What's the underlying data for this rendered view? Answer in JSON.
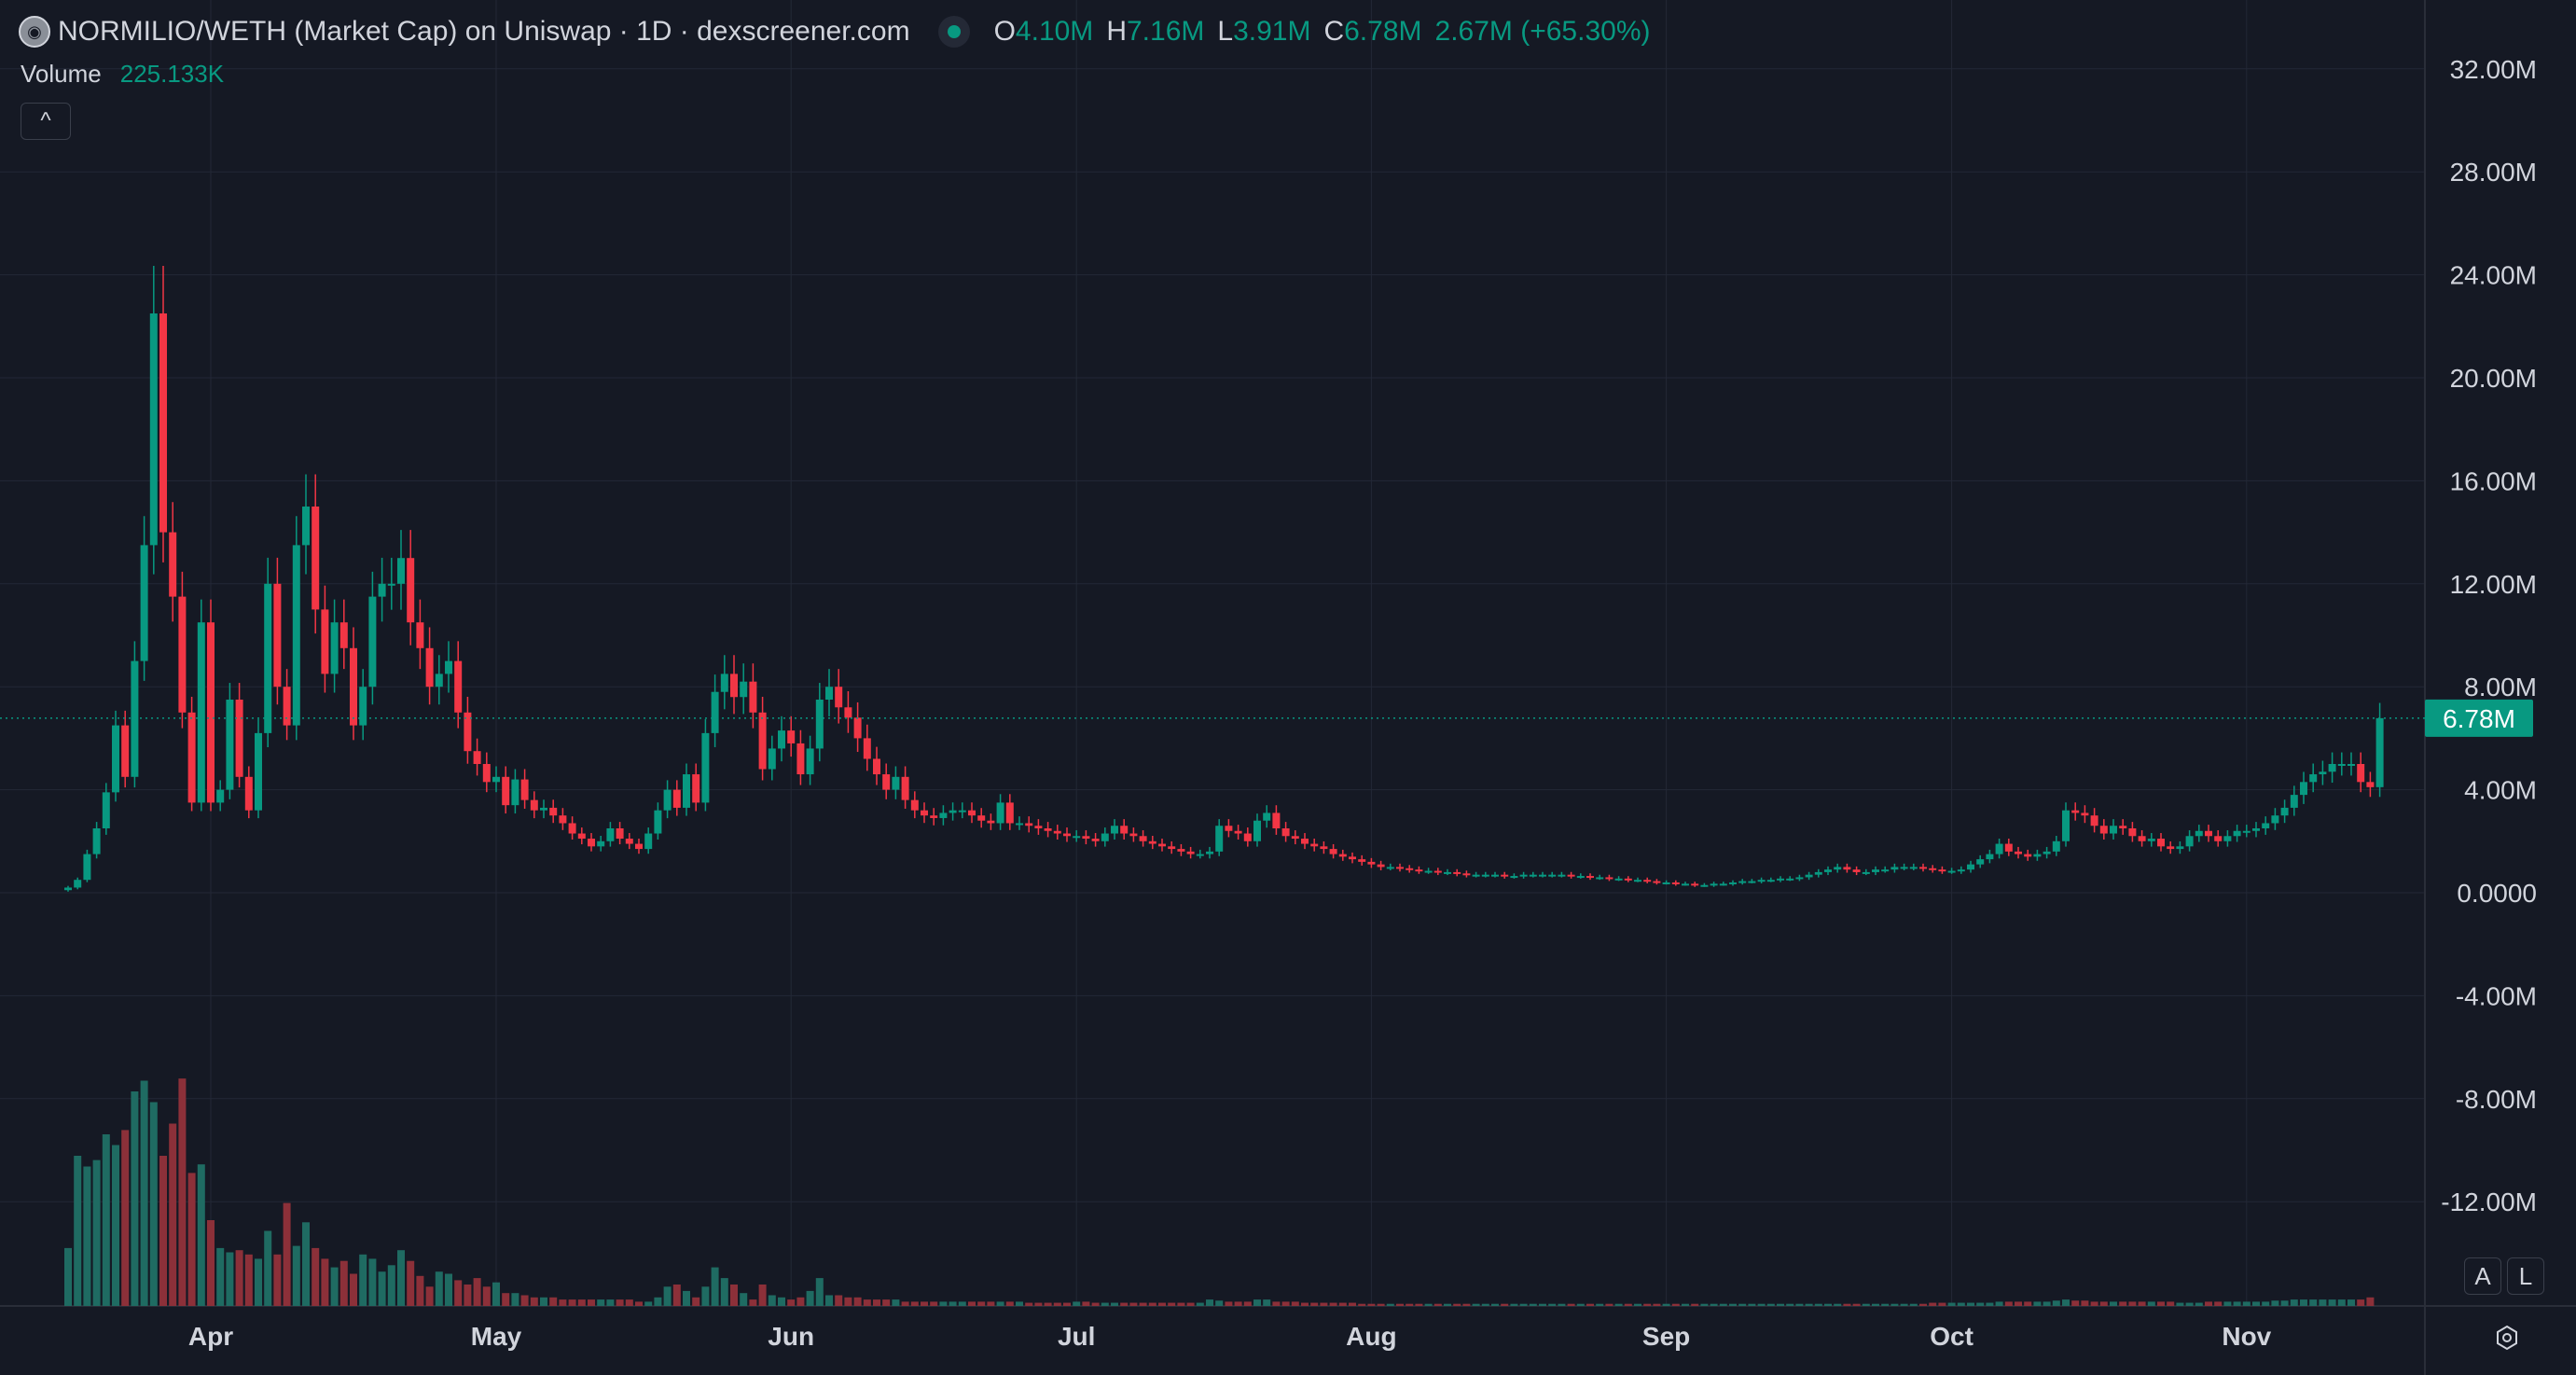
{
  "header": {
    "title": "NORMILIO/WETH (Market Cap) on Uniswap · 1D · dexscreener.com",
    "ohlc": [
      {
        "key": "O",
        "value": "4.10M"
      },
      {
        "key": "H",
        "value": "7.16M"
      },
      {
        "key": "L",
        "value": "3.91M"
      },
      {
        "key": "C",
        "value": "6.78M"
      }
    ],
    "change": "2.67M (+65.30%)"
  },
  "volume": {
    "label": "Volume",
    "value": "225.133K"
  },
  "controls": {
    "collapse_glyph": "^",
    "auto_scale": "A",
    "log_scale": "L",
    "settings_icon": "gear-icon"
  },
  "current_price": {
    "label": "6.78M",
    "value": 6.78
  },
  "colors": {
    "up": "#089981",
    "down": "#f23645",
    "up_volume": "#1f6b62",
    "down_volume": "#8c3039",
    "background": "#151924",
    "grid": "#232836"
  },
  "chart_data": {
    "type": "candlestick",
    "y_unit": "market cap (millions)",
    "ylim": [
      -14,
      34
    ],
    "y_ticks": [
      {
        "value": 32,
        "label": "32.00M"
      },
      {
        "value": 28,
        "label": "28.00M"
      },
      {
        "value": 24,
        "label": "24.00M"
      },
      {
        "value": 20,
        "label": "20.00M"
      },
      {
        "value": 16,
        "label": "16.00M"
      },
      {
        "value": 12,
        "label": "12.00M"
      },
      {
        "value": 8,
        "label": "8.00M"
      },
      {
        "value": 4,
        "label": "4.00M"
      },
      {
        "value": 0,
        "label": "0.0000"
      },
      {
        "value": -4,
        "label": "-4.00M"
      },
      {
        "value": -8,
        "label": "-8.00M"
      },
      {
        "value": -12,
        "label": "-12.00M"
      }
    ],
    "x_ticks": [
      {
        "label": "Apr",
        "day": 15
      },
      {
        "label": "May",
        "day": 45
      },
      {
        "label": "Jun",
        "day": 76
      },
      {
        "label": "Jul",
        "day": 106
      },
      {
        "label": "Aug",
        "day": 137
      },
      {
        "label": "Sep",
        "day": 168
      },
      {
        "label": "Oct",
        "day": 198
      },
      {
        "label": "Nov",
        "day": 229
      }
    ],
    "grid": true,
    "closes": [
      0.2,
      0.5,
      1.5,
      2.5,
      3.9,
      6.5,
      4.5,
      9.0,
      13.5,
      22.5,
      14.0,
      11.5,
      7.0,
      3.5,
      10.5,
      3.5,
      4.0,
      7.5,
      4.5,
      3.2,
      6.2,
      12.0,
      8.0,
      6.5,
      13.5,
      15.0,
      11.0,
      8.5,
      10.5,
      9.5,
      6.5,
      8.0,
      11.5,
      12.0,
      12.0,
      13.0,
      10.5,
      9.5,
      8.0,
      8.5,
      9.0,
      7.0,
      5.5,
      5.0,
      4.3,
      4.5,
      3.4,
      4.4,
      3.6,
      3.2,
      3.3,
      3.0,
      2.7,
      2.3,
      2.1,
      1.8,
      2.0,
      2.5,
      2.1,
      1.9,
      1.7,
      2.3,
      3.2,
      4.0,
      3.3,
      4.6,
      3.5,
      6.2,
      7.8,
      8.5,
      7.6,
      8.2,
      7.0,
      4.8,
      5.6,
      6.3,
      5.8,
      4.6,
      5.6,
      7.5,
      8.0,
      7.2,
      6.8,
      6.0,
      5.2,
      4.6,
      4.0,
      4.5,
      3.6,
      3.2,
      3.0,
      2.9,
      3.1,
      3.2,
      3.2,
      3.0,
      2.8,
      2.7,
      3.5,
      2.7,
      2.7,
      2.6,
      2.5,
      2.4,
      2.3,
      2.2,
      2.2,
      2.1,
      2.0,
      2.3,
      2.6,
      2.3,
      2.2,
      2.0,
      1.9,
      1.8,
      1.7,
      1.6,
      1.5,
      1.5,
      1.6,
      2.6,
      2.4,
      2.3,
      2.0,
      2.8,
      3.1,
      2.5,
      2.2,
      2.1,
      1.9,
      1.8,
      1.7,
      1.5,
      1.4,
      1.3,
      1.2,
      1.1,
      1.0,
      1.0,
      0.95,
      0.9,
      0.85,
      0.85,
      0.8,
      0.8,
      0.75,
      0.7,
      0.7,
      0.7,
      0.7,
      0.65,
      0.65,
      0.7,
      0.7,
      0.7,
      0.7,
      0.7,
      0.65,
      0.65,
      0.6,
      0.6,
      0.55,
      0.55,
      0.5,
      0.5,
      0.45,
      0.4,
      0.4,
      0.35,
      0.35,
      0.3,
      0.3,
      0.35,
      0.35,
      0.4,
      0.45,
      0.45,
      0.5,
      0.5,
      0.55,
      0.55,
      0.6,
      0.7,
      0.8,
      0.9,
      1.0,
      0.9,
      0.8,
      0.8,
      0.9,
      0.9,
      1.0,
      1.0,
      1.0,
      0.95,
      0.9,
      0.85,
      0.85,
      0.9,
      1.1,
      1.3,
      1.5,
      1.9,
      1.6,
      1.5,
      1.4,
      1.5,
      1.6,
      2.0,
      3.2,
      3.1,
      3.0,
      2.6,
      2.3,
      2.6,
      2.5,
      2.2,
      2.0,
      2.1,
      1.8,
      1.7,
      1.8,
      2.2,
      2.4,
      2.2,
      2.0,
      2.2,
      2.4,
      2.4,
      2.5,
      2.7,
      3.0,
      3.3,
      3.8,
      4.3,
      4.6,
      4.7,
      5.0,
      5.0,
      5.0,
      4.3,
      4.1,
      6.78
    ],
    "volumes": [
      2.7,
      7.0,
      6.5,
      6.8,
      8.0,
      7.5,
      8.2,
      10.0,
      10.5,
      9.5,
      7.0,
      8.5,
      10.6,
      6.2,
      6.6,
      4.0,
      2.7,
      2.5,
      2.6,
      2.4,
      2.2,
      3.5,
      2.4,
      4.8,
      2.8,
      3.9,
      2.7,
      2.2,
      1.8,
      2.1,
      1.5,
      2.4,
      2.2,
      1.6,
      1.9,
      2.6,
      2.1,
      1.4,
      0.9,
      1.6,
      1.5,
      1.2,
      1.0,
      1.3,
      0.9,
      1.1,
      0.6,
      0.6,
      0.5,
      0.4,
      0.4,
      0.4,
      0.3,
      0.3,
      0.3,
      0.3,
      0.3,
      0.3,
      0.3,
      0.3,
      0.2,
      0.2,
      0.4,
      0.9,
      1.0,
      0.7,
      0.4,
      0.9,
      1.8,
      1.3,
      1.0,
      0.6,
      0.3,
      1.0,
      0.5,
      0.4,
      0.3,
      0.4,
      0.7,
      1.3,
      0.5,
      0.5,
      0.4,
      0.4,
      0.3,
      0.3,
      0.3,
      0.3,
      0.2,
      0.2,
      0.2,
      0.2,
      0.2,
      0.2,
      0.2,
      0.2,
      0.2,
      0.2,
      0.2,
      0.2,
      0.2,
      0.15,
      0.15,
      0.15,
      0.15,
      0.15,
      0.2,
      0.2,
      0.15,
      0.15,
      0.15,
      0.15,
      0.15,
      0.15,
      0.15,
      0.15,
      0.15,
      0.15,
      0.15,
      0.15,
      0.3,
      0.25,
      0.2,
      0.2,
      0.2,
      0.3,
      0.3,
      0.2,
      0.2,
      0.2,
      0.15,
      0.15,
      0.15,
      0.15,
      0.15,
      0.15,
      0.1,
      0.1,
      0.1,
      0.1,
      0.1,
      0.1,
      0.1,
      0.1,
      0.1,
      0.1,
      0.1,
      0.1,
      0.1,
      0.1,
      0.1,
      0.1,
      0.1,
      0.1,
      0.1,
      0.1,
      0.1,
      0.1,
      0.1,
      0.1,
      0.1,
      0.1,
      0.1,
      0.1,
      0.1,
      0.1,
      0.1,
      0.1,
      0.1,
      0.1,
      0.1,
      0.1,
      0.1,
      0.1,
      0.1,
      0.1,
      0.1,
      0.1,
      0.1,
      0.1,
      0.1,
      0.1,
      0.1,
      0.1,
      0.1,
      0.1,
      0.1,
      0.1,
      0.1,
      0.1,
      0.1,
      0.1,
      0.1,
      0.1,
      0.1,
      0.1,
      0.15,
      0.15,
      0.15,
      0.15,
      0.15,
      0.15,
      0.15,
      0.2,
      0.2,
      0.2,
      0.2,
      0.2,
      0.2,
      0.25,
      0.3,
      0.25,
      0.25,
      0.2,
      0.2,
      0.2,
      0.2,
      0.2,
      0.2,
      0.2,
      0.2,
      0.2,
      0.15,
      0.15,
      0.15,
      0.2,
      0.2,
      0.2,
      0.2,
      0.2,
      0.2,
      0.2,
      0.25,
      0.25,
      0.3,
      0.3,
      0.3,
      0.3,
      0.3,
      0.3,
      0.3,
      0.3,
      0.4
    ]
  }
}
